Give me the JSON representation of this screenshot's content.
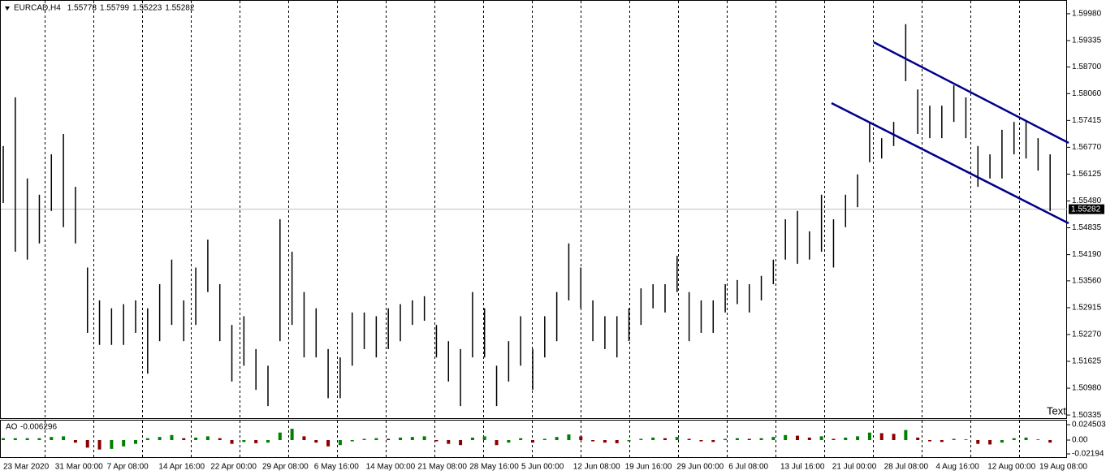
{
  "chart_data": {
    "type": "price-bars",
    "symbol": "EURCAD,H4",
    "ohlc": [
      1.55778,
      1.55799,
      1.55223,
      1.55282
    ],
    "high": [
      1.568,
      1.5797,
      1.5602,
      1.5563,
      1.566,
      1.5709,
      1.5582,
      1.5388,
      1.5309,
      1.529,
      1.53,
      1.5309,
      1.529,
      1.5348,
      1.5407,
      1.5309,
      1.5388,
      1.5455,
      1.5348,
      1.525,
      1.5271,
      1.5192,
      1.5152,
      1.5504,
      1.5426,
      1.5329,
      1.529,
      1.5192,
      1.5172,
      1.528,
      1.528,
      1.5271,
      1.529,
      1.53,
      1.5309,
      1.5319,
      1.525,
      1.5211,
      1.5192,
      1.5329,
      1.529,
      1.5152,
      1.5211,
      1.5271,
      1.5192,
      1.5271,
      1.5329,
      1.5446,
      1.5388,
      1.5309,
      1.5271,
      1.5271,
      1.529,
      1.5338,
      1.5348,
      1.5348,
      1.5416,
      1.5329,
      1.5309,
      1.5309,
      1.5348,
      1.5358,
      1.5348,
      1.5368,
      1.5407,
      1.5504,
      1.5524,
      1.5475,
      1.5563,
      1.5504,
      1.5563,
      1.5612,
      1.5738,
      1.5699,
      1.5738,
      1.5973,
      1.5816,
      1.5777,
      1.5777,
      1.5826,
      1.5797,
      1.568,
      1.566,
      1.5719,
      1.5738,
      1.5738,
      1.5699,
      1.566
    ],
    "low": [
      1.5543,
      1.5426,
      1.5407,
      1.5446,
      1.5524,
      1.5485,
      1.5446,
      1.5231,
      1.5202,
      1.5202,
      1.5202,
      1.5231,
      1.5133,
      1.5211,
      1.525,
      1.5211,
      1.525,
      1.5329,
      1.5211,
      1.5114,
      1.5152,
      1.5094,
      1.5055,
      1.5211,
      1.525,
      1.5172,
      1.5172,
      1.5074,
      1.5074,
      1.5152,
      1.5192,
      1.5172,
      1.5192,
      1.5211,
      1.525,
      1.526,
      1.5172,
      1.5114,
      1.5055,
      1.5172,
      1.5172,
      1.5055,
      1.5114,
      1.5152,
      1.5094,
      1.5172,
      1.5211,
      1.5309,
      1.529,
      1.5211,
      1.5192,
      1.5172,
      1.5211,
      1.525,
      1.529,
      1.528,
      1.5329,
      1.5211,
      1.5231,
      1.5231,
      1.528,
      1.53,
      1.528,
      1.5309,
      1.5348,
      1.5407,
      1.5397,
      1.5407,
      1.5426,
      1.5388,
      1.5485,
      1.5533,
      1.5641,
      1.565,
      1.568,
      1.5836,
      1.5709,
      1.5699,
      1.5699,
      1.5738,
      1.5699,
      1.5582,
      1.5602,
      1.5602,
      1.566,
      1.565,
      1.5621,
      1.5524
    ],
    "color": "#000000",
    "ylim": [
      1.5024,
      1.6031
    ],
    "yticks": [
      {
        "value": 1.5998,
        "label": "1.59980"
      },
      1.59335,
      {
        "value": 1.587,
        "label": "1.58700"
      },
      {
        "value": 1.5806,
        "label": "1.58060"
      },
      1.57415,
      {
        "value": 1.5677,
        "label": "1.56770"
      },
      1.56125,
      {
        "value": 1.5548,
        "label": "1.55480"
      },
      1.54835,
      {
        "value": 1.5419,
        "label": "1.54190"
      },
      {
        "value": 1.5356,
        "label": "1.53560"
      },
      1.52915,
      {
        "value": 1.5227,
        "label": "1.52270"
      },
      1.51625,
      {
        "value": 1.5098,
        "label": "1.50980"
      },
      1.50335
    ],
    "current_price": 1.55282,
    "text_object": "Text",
    "x_labels": [
      "23 Mar 2020",
      "31 Mar 00:00",
      "7 Apr 08:00",
      "14 Apr 16:00",
      "22 Apr 00:00",
      "29 Apr 08:00",
      "6 May 16:00",
      "14 May 00:00",
      "21 May 08:00",
      "28 May 16:00",
      "5 Jun 00:00",
      "12 Jun 08:00",
      "19 Jun 16:00",
      "29 Jun 00:00",
      "6 Jul 08:00",
      "13 Jul 16:00",
      "21 Jul 00:00",
      "28 Jul 08:00",
      "4 Aug 16:00",
      "12 Aug 00:00",
      "19 Aug 08:00"
    ],
    "indicator": {
      "type": "histogram",
      "name": "AO",
      "value": -0.006296,
      "values": [
        0.003,
        0.003,
        0.003,
        0.003,
        0.005,
        0.006,
        -0.004,
        -0.012,
        -0.015,
        -0.014,
        -0.01,
        -0.006,
        0.003,
        0.005,
        0.008,
        0.003,
        0.004,
        0.006,
        0.003,
        -0.006,
        -0.003,
        -0.005,
        -0.004,
        0.012,
        0.018,
        0.006,
        -0.004,
        -0.01,
        -0.008,
        -0.002,
        0.002,
        0.003,
        0.002,
        0.004,
        0.005,
        0.006,
        -0.002,
        -0.006,
        -0.008,
        0.004,
        0.006,
        -0.008,
        -0.004,
        0.003,
        -0.004,
        0.002,
        0.005,
        0.009,
        0.006,
        -0.002,
        -0.004,
        -0.005,
        -0.002,
        0.002,
        0.004,
        0.003,
        0.005,
        0.002,
        -0.002,
        -0.003,
        0.002,
        0.003,
        0.002,
        0.003,
        0.005,
        0.008,
        0.007,
        0.004,
        0.006,
        0.002,
        0.004,
        0.006,
        0.012,
        0.011,
        0.01,
        0.016,
        0.004,
        -0.002,
        -0.003,
        0.002,
        0.001,
        -0.006,
        -0.007,
        -0.004,
        0.003,
        0.004,
        0.001,
        -0.004
      ],
      "up_color": "#008000",
      "down_color": "#8b0000",
      "ylim": [
        -0.0271,
        0.031
      ],
      "yticks": [
        0.024503,
        {
          "value": 0,
          "label": "0.00"
        },
        -0.02194
      ]
    }
  }
}
